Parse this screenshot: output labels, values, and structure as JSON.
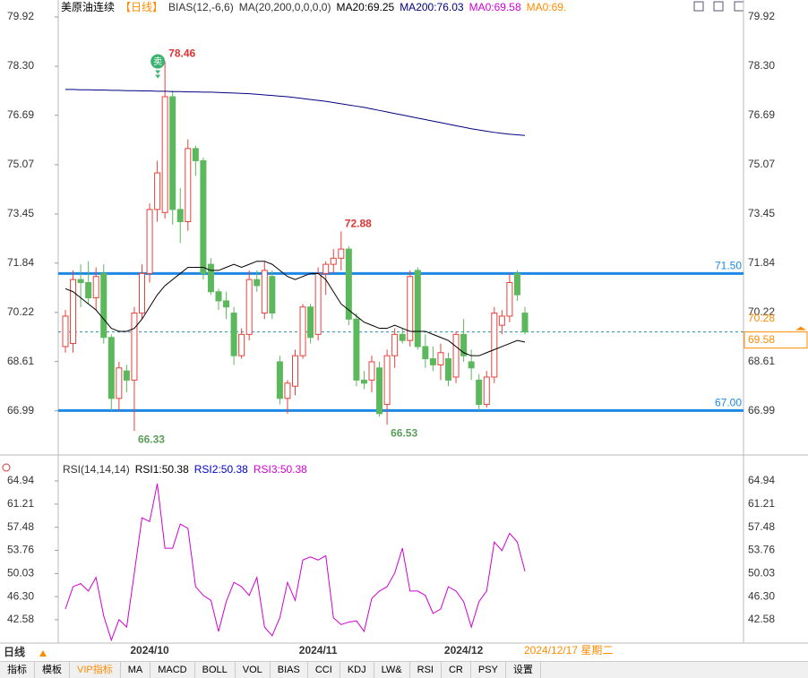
{
  "header": {
    "title": "美原油连续",
    "period": "【日线】",
    "indicators": [
      "BIAS(12,-6,6)",
      "MA(20,200,0,0,0,0)"
    ]
  },
  "chart_data": [
    {
      "type": "candlestick",
      "up_color": "#e8413b",
      "down_color": "#5cb85c",
      "open": [
        69.1,
        69.2,
        71.3,
        71.2,
        70.7,
        71.5,
        69.4,
        67.4,
        68.3,
        68.0,
        70.2,
        71.5,
        73.6,
        73.5,
        77.3,
        73.6,
        73.2,
        75.6,
        75.2,
        71.8,
        70.9,
        70.6,
        70.2,
        68.8,
        69.5,
        71.3,
        70.2,
        71.4,
        68.6,
        67.4,
        67.8,
        68.8,
        70.4,
        69.5,
        71.5,
        71.8,
        72.0,
        72.3,
        70.0,
        68.0,
        68.0,
        68.4,
        67.2,
        68.8,
        69.5,
        69.3,
        71.6,
        69.1,
        68.7,
        68.5,
        68.7,
        68.1,
        69.5,
        68.6,
        68.0,
        67.2,
        68.1,
        69.8,
        70.1,
        71.5,
        70.2
      ],
      "high": [
        70.3,
        71.6,
        71.8,
        71.9,
        71.7,
        71.8,
        69.5,
        68.6,
        68.5,
        70.4,
        71.8,
        73.8,
        75.2,
        78.46,
        77.5,
        74.3,
        75.9,
        75.7,
        75.3,
        72.0,
        71.0,
        70.9,
        70.4,
        69.7,
        71.6,
        71.6,
        71.9,
        71.6,
        68.8,
        68.0,
        69.0,
        70.5,
        70.5,
        71.7,
        71.9,
        72.3,
        72.88,
        72.4,
        70.2,
        68.3,
        68.8,
        68.6,
        69.0,
        69.7,
        69.7,
        71.6,
        71.7,
        69.5,
        69.1,
        69.2,
        68.9,
        69.6,
        70.0,
        69.0,
        68.2,
        68.3,
        70.4,
        70.3,
        71.5,
        71.6,
        70.4
      ],
      "low": [
        68.9,
        68.9,
        70.4,
        70.5,
        70.3,
        69.2,
        67.0,
        67.0,
        67.6,
        66.33,
        70.0,
        71.2,
        73.2,
        73.3,
        73.1,
        72.5,
        72.9,
        74.7,
        71.3,
        70.8,
        70.3,
        70.0,
        68.5,
        68.7,
        69.3,
        70.9,
        70.0,
        70.0,
        67.2,
        66.9,
        67.5,
        68.7,
        69.2,
        69.3,
        70.8,
        71.5,
        71.6,
        69.8,
        67.8,
        67.7,
        67.6,
        66.8,
        66.53,
        68.4,
        69.2,
        69.1,
        69.0,
        68.4,
        68.3,
        68.0,
        67.8,
        67.9,
        68.6,
        68.0,
        67.0,
        67.1,
        67.9,
        69.5,
        69.9,
        70.6,
        69.5
      ],
      "close": [
        70.1,
        71.3,
        71.2,
        70.7,
        71.4,
        69.4,
        67.4,
        68.4,
        68.0,
        70.2,
        71.5,
        73.6,
        74.8,
        77.3,
        73.6,
        73.2,
        75.6,
        75.2,
        71.5,
        70.9,
        70.6,
        70.4,
        68.8,
        69.5,
        71.3,
        71.1,
        71.6,
        70.2,
        67.4,
        67.9,
        68.8,
        70.4,
        69.4,
        71.5,
        71.8,
        72.0,
        72.3,
        70.0,
        68.0,
        67.9,
        68.6,
        66.9,
        68.8,
        69.5,
        69.3,
        71.4,
        69.1,
        68.7,
        68.5,
        68.9,
        68.0,
        69.5,
        68.8,
        68.4,
        67.2,
        68.1,
        70.2,
        70.1,
        71.2,
        70.8,
        69.58
      ],
      "series": [
        {
          "name": "MA20:69.25",
          "color": "#000000",
          "values": [
            71.0,
            70.9,
            70.7,
            70.5,
            70.3,
            70.0,
            69.7,
            69.6,
            69.6,
            69.7,
            70.0,
            70.4,
            70.8,
            71.1,
            71.3,
            71.5,
            71.7,
            71.7,
            71.7,
            71.6,
            71.6,
            71.7,
            71.8,
            71.7,
            71.8,
            71.9,
            71.9,
            71.8,
            71.6,
            71.4,
            71.3,
            71.4,
            71.5,
            71.5,
            71.3,
            70.9,
            70.5,
            70.3,
            70.1,
            69.9,
            69.8,
            69.7,
            69.7,
            69.8,
            69.7,
            69.6,
            69.6,
            69.6,
            69.5,
            69.4,
            69.3,
            69.1,
            68.9,
            68.8,
            68.8,
            68.9,
            69.0,
            69.1,
            69.2,
            69.3,
            69.25
          ]
        },
        {
          "name": "MA200:76.03",
          "color": "#000080",
          "values": [
            77.54,
            77.54,
            77.53,
            77.53,
            77.52,
            77.52,
            77.51,
            77.51,
            77.5,
            77.5,
            77.49,
            77.49,
            77.48,
            77.48,
            77.47,
            77.47,
            77.46,
            77.46,
            77.45,
            77.45,
            77.44,
            77.43,
            77.42,
            77.41,
            77.4,
            77.38,
            77.36,
            77.34,
            77.32,
            77.3,
            77.27,
            77.24,
            77.21,
            77.18,
            77.15,
            77.11,
            77.07,
            77.03,
            76.99,
            76.95,
            76.9,
            76.85,
            76.8,
            76.75,
            76.7,
            76.65,
            76.6,
            76.55,
            76.5,
            76.45,
            76.4,
            76.35,
            76.3,
            76.25,
            76.21,
            76.17,
            76.13,
            76.1,
            76.07,
            76.05,
            76.03
          ]
        }
      ],
      "extra_legend": [
        {
          "name": "MA0:69.58",
          "color": "#d100d1"
        },
        {
          "name": "MA0:69.",
          "color": "#ff8c00"
        }
      ],
      "ylim": [
        65.63,
        80.24
      ],
      "yticks": [
        79.92,
        {
          "value": 78.3,
          "label": "78.30"
        },
        76.69,
        75.07,
        73.45,
        71.84,
        70.22,
        68.61,
        66.99
      ],
      "hlines": [
        {
          "value": 71.5,
          "label": "71.50"
        },
        {
          "value": 67,
          "label": "67.00"
        }
      ],
      "hline_color": "#1e88e5",
      "last_price": 69.58,
      "price_label": 70.28,
      "annotations": [
        78.46,
        72.88,
        66.33,
        66.53
      ],
      "signal": "卖"
    },
    {
      "type": "line",
      "title": "RSI(14,14,14)",
      "legend_only": [
        {
          "name": "RSI1:50.38",
          "color": "#000000"
        },
        {
          "name": "RSI2:50.38",
          "color": "#0000cc"
        }
      ],
      "series": [
        {
          "name": "RSI3:50.38",
          "color": "#d100d1",
          "values": [
            44.3,
            47.9,
            48.4,
            47.2,
            49.4,
            43.2,
            39.3,
            42.6,
            41.4,
            50.1,
            59.0,
            58.4,
            64.5,
            54.1,
            54.1,
            58.0,
            57.3,
            47.9,
            46.5,
            45.7,
            40.7,
            45.5,
            48.6,
            47.9,
            46.5,
            49.4,
            41.4,
            40.0,
            42.9,
            48.6,
            45.7,
            52.2,
            52.7,
            52.2,
            52.9,
            42.9,
            41.8,
            42.2,
            42.4,
            40.7,
            46.0,
            47.2,
            47.9,
            50.1,
            54.1,
            47.2,
            47.2,
            46.5,
            43.6,
            44.3,
            47.9,
            47.2,
            45.5,
            41.4,
            45.5,
            47.2,
            55.1,
            53.7,
            56.5,
            55.1,
            50.38
          ]
        }
      ],
      "ylim": [
        38.82,
        67.39
      ],
      "yticks": [
        64.94,
        61.21,
        57.48,
        53.76,
        50.03,
        {
          "value": 46.3,
          "label": "46.30"
        },
        42.58
      ],
      "categories": [
        null,
        null,
        null,
        null,
        null,
        null,
        null,
        null,
        null,
        null,
        null,
        "2024/10",
        null,
        null,
        null,
        null,
        null,
        null,
        null,
        null,
        null,
        null,
        null,
        null,
        null,
        null,
        null,
        null,
        null,
        null,
        null,
        null,
        null,
        "2024/11",
        null,
        null,
        null,
        null,
        null,
        null,
        null,
        null,
        null,
        null,
        null,
        null,
        null,
        null,
        null,
        null,
        null,
        null,
        "2024/12",
        null,
        null,
        null,
        null,
        null,
        null,
        null,
        null
      ],
      "cursor_date": "2024/12/17 星期二"
    }
  ],
  "toolbar": {
    "period": "日线",
    "tabs": [
      "指标",
      "模板",
      "VIP指标",
      "MA",
      "MACD",
      "BOLL",
      "VOL",
      "BIAS",
      "CCI",
      "KDJ",
      "LW&",
      "RSI",
      "CR",
      "PSY",
      "设置"
    ]
  }
}
